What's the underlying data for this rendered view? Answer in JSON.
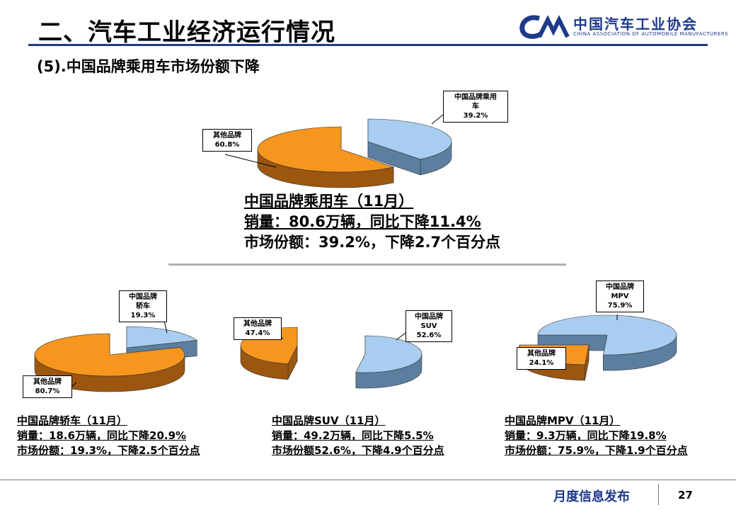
{
  "header": {
    "title": "二、汽车工业经济运行情况",
    "logo_cn": "中国汽车工业协会",
    "logo_en": "CHINA ASSOCIATION OF AUTOMOBILE MANUFACTURERS",
    "subtitle": "(5).中国品牌乘用车市场份额下降"
  },
  "colors": {
    "blue": "#a8cdf0",
    "blue_side": "#5c7fa0",
    "orange": "#f7961e",
    "orange_side": "#9c5610",
    "accent": "#1f3a8a"
  },
  "chart_data": [
    {
      "type": "pie",
      "id": "passenger",
      "slices": [
        {
          "label_lines": [
            "中国品牌乘用",
            "车"
          ],
          "value": 39.2,
          "value_text": "39.2%",
          "color": "blue"
        },
        {
          "label_lines": [
            "其他品牌"
          ],
          "value": 60.8,
          "value_text": "60.8%",
          "color": "orange"
        }
      ],
      "info": [
        "中国品牌乘用车（11月）",
        "销量：80.6万辆，同比下降11.4%",
        "市场份额：39.2%，下降2.7个百分点"
      ]
    },
    {
      "type": "pie",
      "id": "sedan",
      "slices": [
        {
          "label_lines": [
            "中国品牌",
            "轿车"
          ],
          "value": 19.3,
          "value_text": "19.3%",
          "color": "blue"
        },
        {
          "label_lines": [
            "其他品牌"
          ],
          "value": 80.7,
          "value_text": "80.7%",
          "color": "orange"
        }
      ],
      "info": [
        "中国品牌轿车（11月）",
        "销量：18.6万辆，同比下降20.9%",
        "市场份额：19.3%，下降2.5个百分点"
      ]
    },
    {
      "type": "pie",
      "id": "suv",
      "slices": [
        {
          "label_lines": [
            "中国品牌",
            "SUV"
          ],
          "value": 52.6,
          "value_text": "52.6%",
          "color": "blue"
        },
        {
          "label_lines": [
            "其他品牌"
          ],
          "value": 47.4,
          "value_text": "47.4%",
          "color": "orange"
        }
      ],
      "info": [
        "中国品牌SUV（11月）",
        "销量：49.2万辆，同比下降5.5%",
        "市场份额52.6%，下降4.9个百分点"
      ]
    },
    {
      "type": "pie",
      "id": "mpv",
      "slices": [
        {
          "label_lines": [
            "中国品牌",
            "MPV"
          ],
          "value": 75.9,
          "value_text": "75.9%",
          "color": "blue"
        },
        {
          "label_lines": [
            "其他品牌"
          ],
          "value": 24.1,
          "value_text": "24.1%",
          "color": "orange"
        }
      ],
      "info": [
        "中国品牌MPV（11月）",
        "销量：9.3万辆，同比下降19.8%",
        "市场份额：75.9%，下降1.9个百分点"
      ]
    }
  ],
  "footer": {
    "text": "月度信息发布",
    "page": "27"
  }
}
